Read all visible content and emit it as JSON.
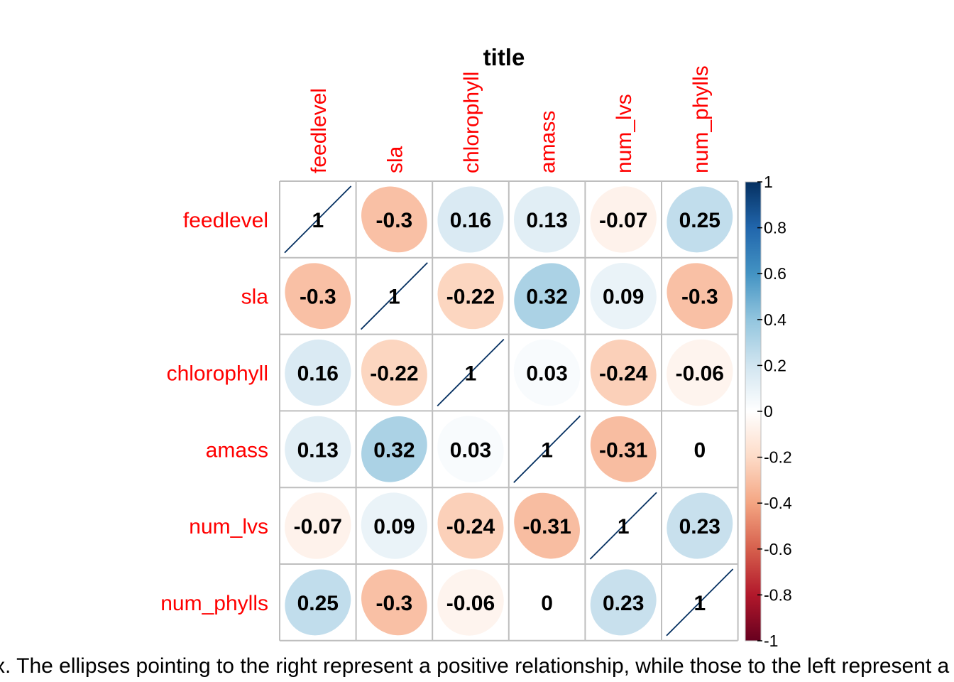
{
  "chart_data": {
    "type": "heatmap",
    "subtype": "correlation-matrix-ellipse",
    "title": "title",
    "variables": [
      "feedlevel",
      "sla",
      "chlorophyll",
      "amass",
      "num_lvs",
      "num_phylls"
    ],
    "matrix": [
      [
        1,
        -0.3,
        0.16,
        0.13,
        -0.07,
        0.25
      ],
      [
        -0.3,
        1,
        -0.22,
        0.32,
        0.09,
        -0.3
      ],
      [
        0.16,
        -0.22,
        1,
        0.03,
        -0.24,
        -0.06
      ],
      [
        0.13,
        0.32,
        0.03,
        1,
        -0.31,
        0
      ],
      [
        -0.07,
        0.09,
        -0.24,
        -0.31,
        1,
        0.23
      ],
      [
        0.25,
        -0.3,
        -0.06,
        0,
        0.23,
        1
      ]
    ],
    "colorbar": {
      "range": [
        -1,
        1
      ],
      "ticks": [
        "1",
        "0.8",
        "0.6",
        "0.4",
        "0.2",
        "0",
        "-0.2",
        "-0.4",
        "-0.6",
        "-0.8",
        "-1"
      ],
      "colors": [
        "#67001F",
        "#B2182B",
        "#D6604D",
        "#F4A582",
        "#FDDBC7",
        "#FFFFFF",
        "#D1E5F0",
        "#92C5DE",
        "#4393C3",
        "#2166AC",
        "#053061"
      ]
    },
    "label_color": "#FF0000",
    "grid": true,
    "legend_position": "right"
  },
  "caption": "x. The ellipses pointing to the right represent a positive relationship, while those to the left represent a negative relationship."
}
